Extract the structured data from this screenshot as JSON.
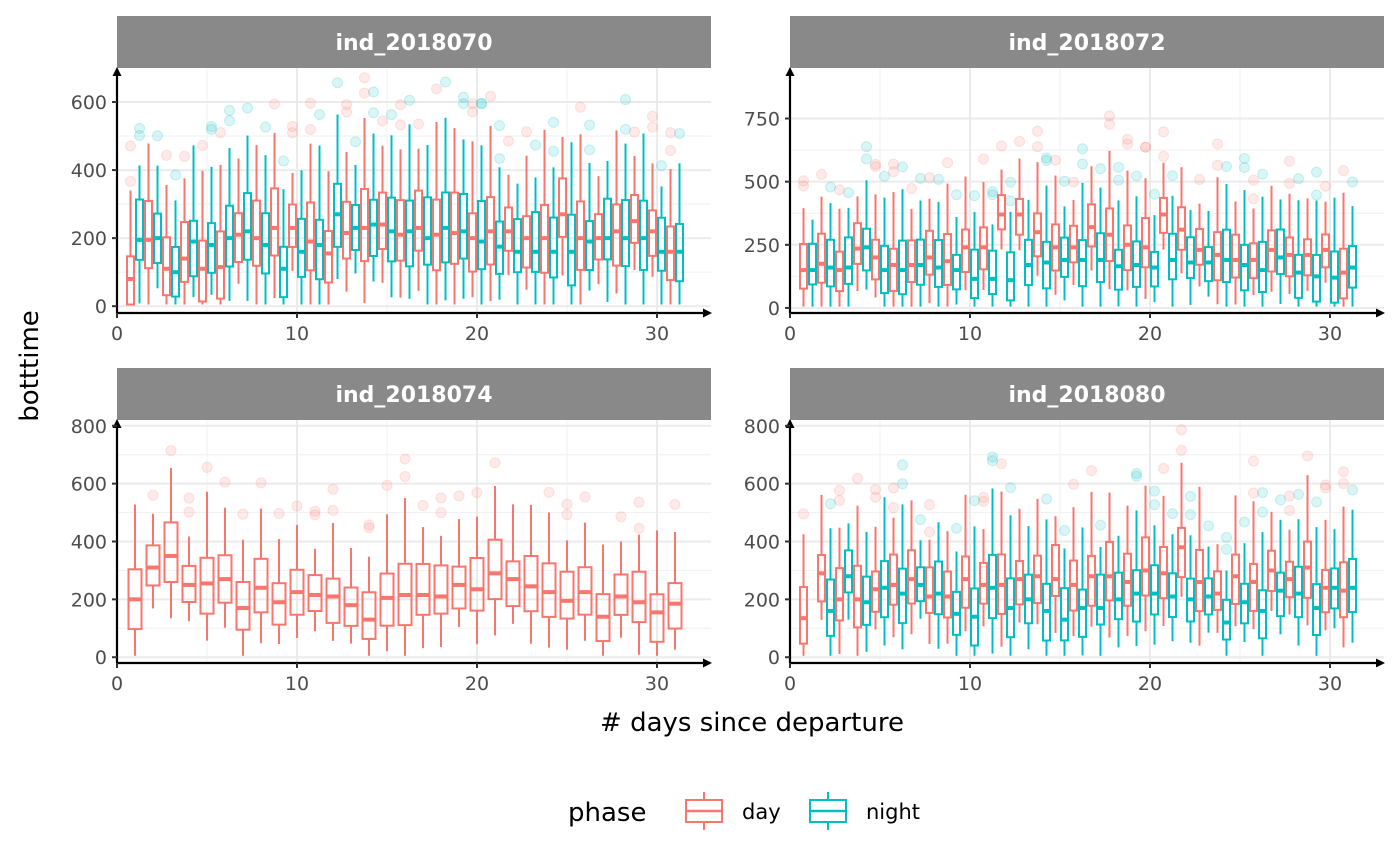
{
  "chart_data": {
    "type": "box",
    "xlabel": "# days since departure",
    "ylabel": "botttime",
    "legend": {
      "title": "phase",
      "position": "bottom",
      "entries": [
        {
          "name": "day",
          "color": "#F8766D"
        },
        {
          "name": "night",
          "color": "#00BFC4"
        }
      ]
    },
    "grid": true,
    "facets": [
      {
        "title": "ind_2018070",
        "xlim": [
          0,
          33
        ],
        "ylim": [
          -20,
          700
        ],
        "x_ticks": [
          0,
          10,
          20,
          30
        ],
        "x_tick_labels": [
          "0",
          "10",
          "20",
          "30"
        ],
        "y_ticks": [
          0,
          200,
          400,
          600
        ],
        "y_tick_labels": [
          "0",
          "200",
          "400",
          "600"
        ],
        "series": [
          {
            "name": "day",
            "day": [
              1,
              2,
              3,
              4,
              5,
              6,
              7,
              8,
              9,
              10,
              11,
              12,
              13,
              14,
              15,
              16,
              17,
              18,
              19,
              20,
              21,
              22,
              23,
              24,
              25,
              26,
              27,
              28,
              29,
              30,
              31
            ],
            "median": [
              80,
              195,
              110,
              140,
              110,
              115,
              210,
              200,
              230,
              230,
              190,
              155,
              215,
              230,
              240,
              210,
              230,
              210,
              215,
              200,
              220,
              220,
              200,
              200,
              270,
              200,
              200,
              220,
              250,
              220,
              160
            ]
          },
          {
            "name": "night",
            "day": [
              1,
              2,
              3,
              4,
              5,
              6,
              7,
              8,
              9,
              10,
              11,
              12,
              13,
              14,
              15,
              16,
              17,
              18,
              19,
              20,
              21,
              22,
              23,
              24,
              25,
              26,
              27,
              28,
              29,
              30,
              31
            ],
            "median": [
              195,
              200,
              100,
              190,
              180,
              200,
              220,
              180,
              110,
              160,
              180,
              270,
              230,
              240,
              220,
              220,
              200,
              230,
              220,
              190,
              175,
              160,
              160,
              160,
              160,
              190,
              200,
              200,
              200,
              160,
              160
            ]
          }
        ]
      },
      {
        "title": "ind_2018072",
        "xlim": [
          0,
          33
        ],
        "ylim": [
          -20,
          950
        ],
        "x_ticks": [
          0,
          10,
          20,
          30
        ],
        "x_tick_labels": [
          "0",
          "10",
          "20",
          "30"
        ],
        "y_ticks": [
          0,
          250,
          500,
          750
        ],
        "y_tick_labels": [
          "0",
          "250",
          "500",
          "750"
        ],
        "series": [
          {
            "name": "day",
            "day": [
              1,
              2,
              3,
              4,
              5,
              6,
              7,
              8,
              9,
              10,
              11,
              12,
              13,
              14,
              15,
              16,
              17,
              18,
              19,
              20,
              21,
              22,
              23,
              24,
              25,
              26,
              27,
              28,
              29,
              30,
              31
            ],
            "median": [
              150,
              175,
              150,
              235,
              200,
              170,
              170,
              200,
              185,
              240,
              240,
              370,
              370,
              300,
              240,
              240,
              320,
              290,
              250,
              240,
              370,
              310,
              230,
              210,
              190,
              190,
              230,
              210,
              210,
              230,
              140
            ]
          },
          {
            "name": "night",
            "day": [
              1,
              2,
              3,
              4,
              5,
              6,
              7,
              8,
              9,
              10,
              11,
              12,
              13,
              14,
              15,
              16,
              17,
              18,
              19,
              20,
              21,
              22,
              23,
              24,
              25,
              26,
              27,
              28,
              29,
              30,
              31
            ],
            "median": [
              150,
              160,
              160,
              240,
              150,
              150,
              170,
              160,
              150,
              115,
              115,
              110,
              170,
              180,
              190,
              190,
              190,
              165,
              170,
              160,
              190,
              180,
              180,
              190,
              170,
              150,
              200,
              140,
              125,
              120,
              160
            ]
          }
        ]
      },
      {
        "title": "ind_2018074",
        "xlim": [
          0,
          33
        ],
        "ylim": [
          -20,
          820
        ],
        "x_ticks": [
          0,
          10,
          20,
          30
        ],
        "x_tick_labels": [
          "0",
          "10",
          "20",
          "30"
        ],
        "y_ticks": [
          0,
          200,
          400,
          600,
          800
        ],
        "y_tick_labels": [
          "0",
          "200",
          "400",
          "600",
          "800"
        ],
        "series": [
          {
            "name": "day",
            "day": [
              1,
              2,
              3,
              4,
              5,
              6,
              7,
              8,
              9,
              10,
              11,
              12,
              13,
              14,
              15,
              16,
              17,
              18,
              19,
              20,
              21,
              22,
              23,
              24,
              25,
              26,
              27,
              28,
              29,
              30,
              31
            ],
            "median": [
              200,
              310,
              350,
              250,
              255,
              270,
              170,
              240,
              190,
              225,
              215,
              210,
              180,
              130,
              205,
              215,
              215,
              210,
              250,
              235,
              290,
              270,
              245,
              225,
              195,
              225,
              140,
              210,
              190,
              155,
              185
            ]
          }
        ]
      },
      {
        "title": "ind_2018080",
        "xlim": [
          0,
          33
        ],
        "ylim": [
          -20,
          820
        ],
        "x_ticks": [
          0,
          10,
          20,
          30
        ],
        "x_tick_labels": [
          "0",
          "10",
          "20",
          "30"
        ],
        "y_ticks": [
          0,
          200,
          400,
          600,
          800
        ],
        "y_tick_labels": [
          "0",
          "200",
          "400",
          "600",
          "800"
        ],
        "series": [
          {
            "name": "day",
            "day": [
              1,
              2,
              3,
              4,
              5,
              6,
              7,
              8,
              9,
              10,
              11,
              12,
              13,
              14,
              15,
              16,
              17,
              18,
              19,
              20,
              21,
              22,
              23,
              24,
              25,
              26,
              27,
              28,
              29,
              30,
              31
            ],
            "median": [
              135,
              290,
              200,
              200,
              235,
              250,
              270,
              210,
              210,
              270,
              250,
              250,
              270,
              280,
              270,
              250,
              280,
              280,
              260,
              300,
              290,
              380,
              260,
              220,
              280,
              260,
              300,
              270,
              310,
              240,
              230
            ]
          },
          {
            "name": "night",
            "day": [
              2,
              3,
              4,
              5,
              6,
              7,
              8,
              9,
              10,
              11,
              12,
              13,
              14,
              15,
              16,
              17,
              18,
              19,
              20,
              21,
              22,
              23,
              24,
              25,
              26,
              27,
              28,
              29,
              30,
              31
            ],
            "median": [
              160,
              280,
              190,
              240,
              220,
              250,
              220,
              150,
              140,
              240,
              170,
              200,
              160,
              130,
              170,
              170,
              200,
              220,
              220,
              210,
              200,
              210,
              120,
              190,
              160,
              230,
              220,
              170,
              240,
              240
            ]
          }
        ]
      }
    ]
  }
}
